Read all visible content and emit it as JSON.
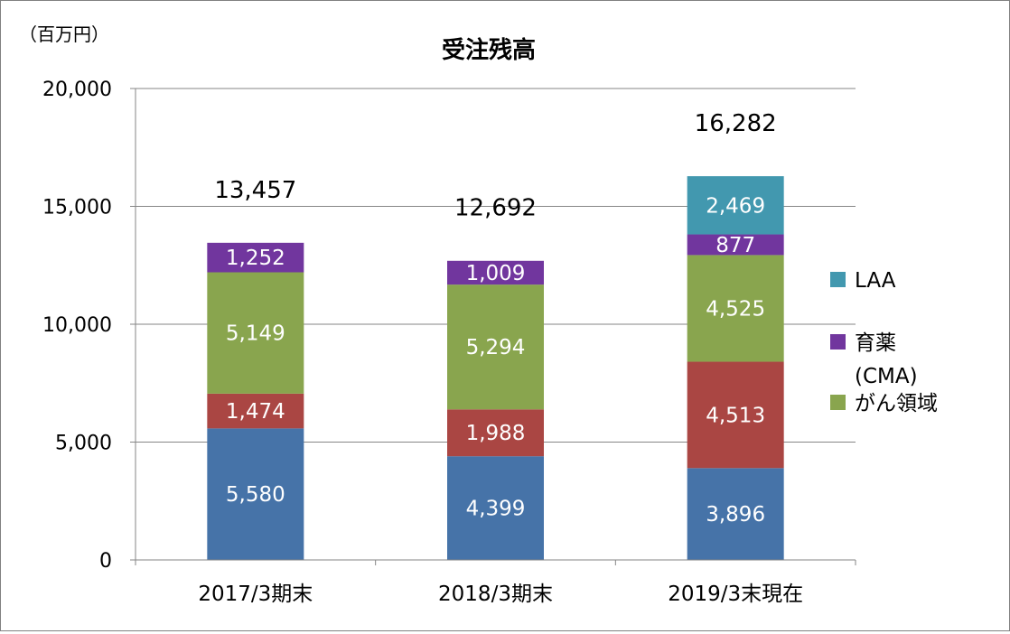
{
  "chart_data": {
    "type": "bar",
    "stacked": true,
    "title": "受注残高",
    "unit_label": "（百万円）",
    "categories": [
      "2017/3期末",
      "2018/3期末",
      "2019/3末現在"
    ],
    "series": [
      {
        "name": "",
        "values": [
          5580,
          4399,
          3896
        ],
        "labels": [
          "5,580",
          "4,399",
          "3,896"
        ],
        "color": "#4673A8"
      },
      {
        "name": "",
        "values": [
          1474,
          1988,
          4513
        ],
        "labels": [
          "1,474",
          "1,988",
          "4,513"
        ],
        "color": "#AA4643"
      },
      {
        "name": "がん領域",
        "values": [
          5149,
          5294,
          4525
        ],
        "labels": [
          "5,149",
          "5,294",
          "4,525"
        ],
        "color": "#89A54E"
      },
      {
        "name": "育薬\n(CMA)",
        "values": [
          1252,
          1009,
          877
        ],
        "labels": [
          "1,252",
          "1,009",
          "877"
        ],
        "color": "#71369E"
      },
      {
        "name": "LAA",
        "values": [
          0,
          0,
          2469
        ],
        "labels": [
          "",
          "",
          "2,469"
        ],
        "color": "#4298AF"
      }
    ],
    "totals": [
      13457,
      12692,
      16282
    ],
    "total_labels": [
      "13,457",
      "12,692",
      "16,282"
    ],
    "ylim": [
      0,
      20000
    ],
    "yticks": [
      0,
      5000,
      10000,
      15000,
      20000
    ],
    "ytick_labels": [
      "0",
      "5,000",
      "10,000",
      "15,000",
      "20,000"
    ],
    "grid": true,
    "legend_position": "right",
    "legend_order": [
      "LAA",
      "育薬\n(CMA)",
      "がん領域"
    ]
  }
}
